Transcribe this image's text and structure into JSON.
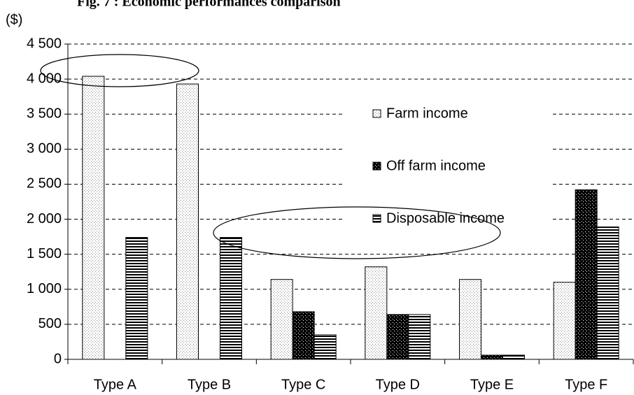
{
  "chart_data": {
    "type": "bar",
    "title": "Fig. 7 : Economic performances comparison",
    "y_label": "($)",
    "categories": [
      "Type A",
      "Type B",
      "Type C",
      "Type D",
      "Type E",
      "Type F"
    ],
    "series": [
      {
        "name": "Farm income",
        "color": "#8c8c8c",
        "values": [
          4040,
          3930,
          1140,
          1320,
          1140,
          1100
        ]
      },
      {
        "name": "Off farm income",
        "color": "#000000",
        "values": [
          null,
          null,
          680,
          640,
          60,
          2420
        ]
      },
      {
        "name": "Disposable income",
        "color": "#000000",
        "values": [
          1740,
          1740,
          350,
          640,
          60,
          1890
        ]
      }
    ],
    "ylim": [
      0,
      4500
    ],
    "yticks": [
      0,
      500,
      {
        "value": 1000,
        "label": "1 000"
      },
      {
        "value": 1500,
        "label": "1 500"
      },
      {
        "value": 2000,
        "label": "2 000"
      },
      {
        "value": 2500,
        "label": "2 500"
      },
      {
        "value": 3000,
        "label": "3 000"
      },
      {
        "value": 3500,
        "label": "3 500"
      },
      {
        "value": 4000,
        "label": "4 000"
      },
      {
        "value": 4500,
        "label": "4 500"
      }
    ],
    "grid": true
  }
}
